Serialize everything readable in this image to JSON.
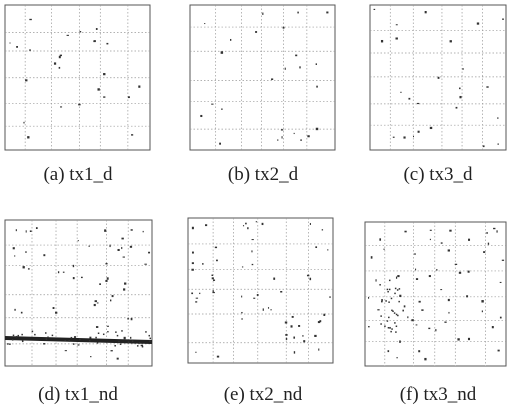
{
  "panels": [
    {
      "caption": "(a) tx1_d"
    },
    {
      "caption": "(b) tx2_d"
    },
    {
      "caption": "(c) tx3_d"
    },
    {
      "caption": "(d) tx1_nd"
    },
    {
      "caption": "(e) tx2_nd"
    },
    {
      "caption": "(f) tx3_nd"
    }
  ]
}
